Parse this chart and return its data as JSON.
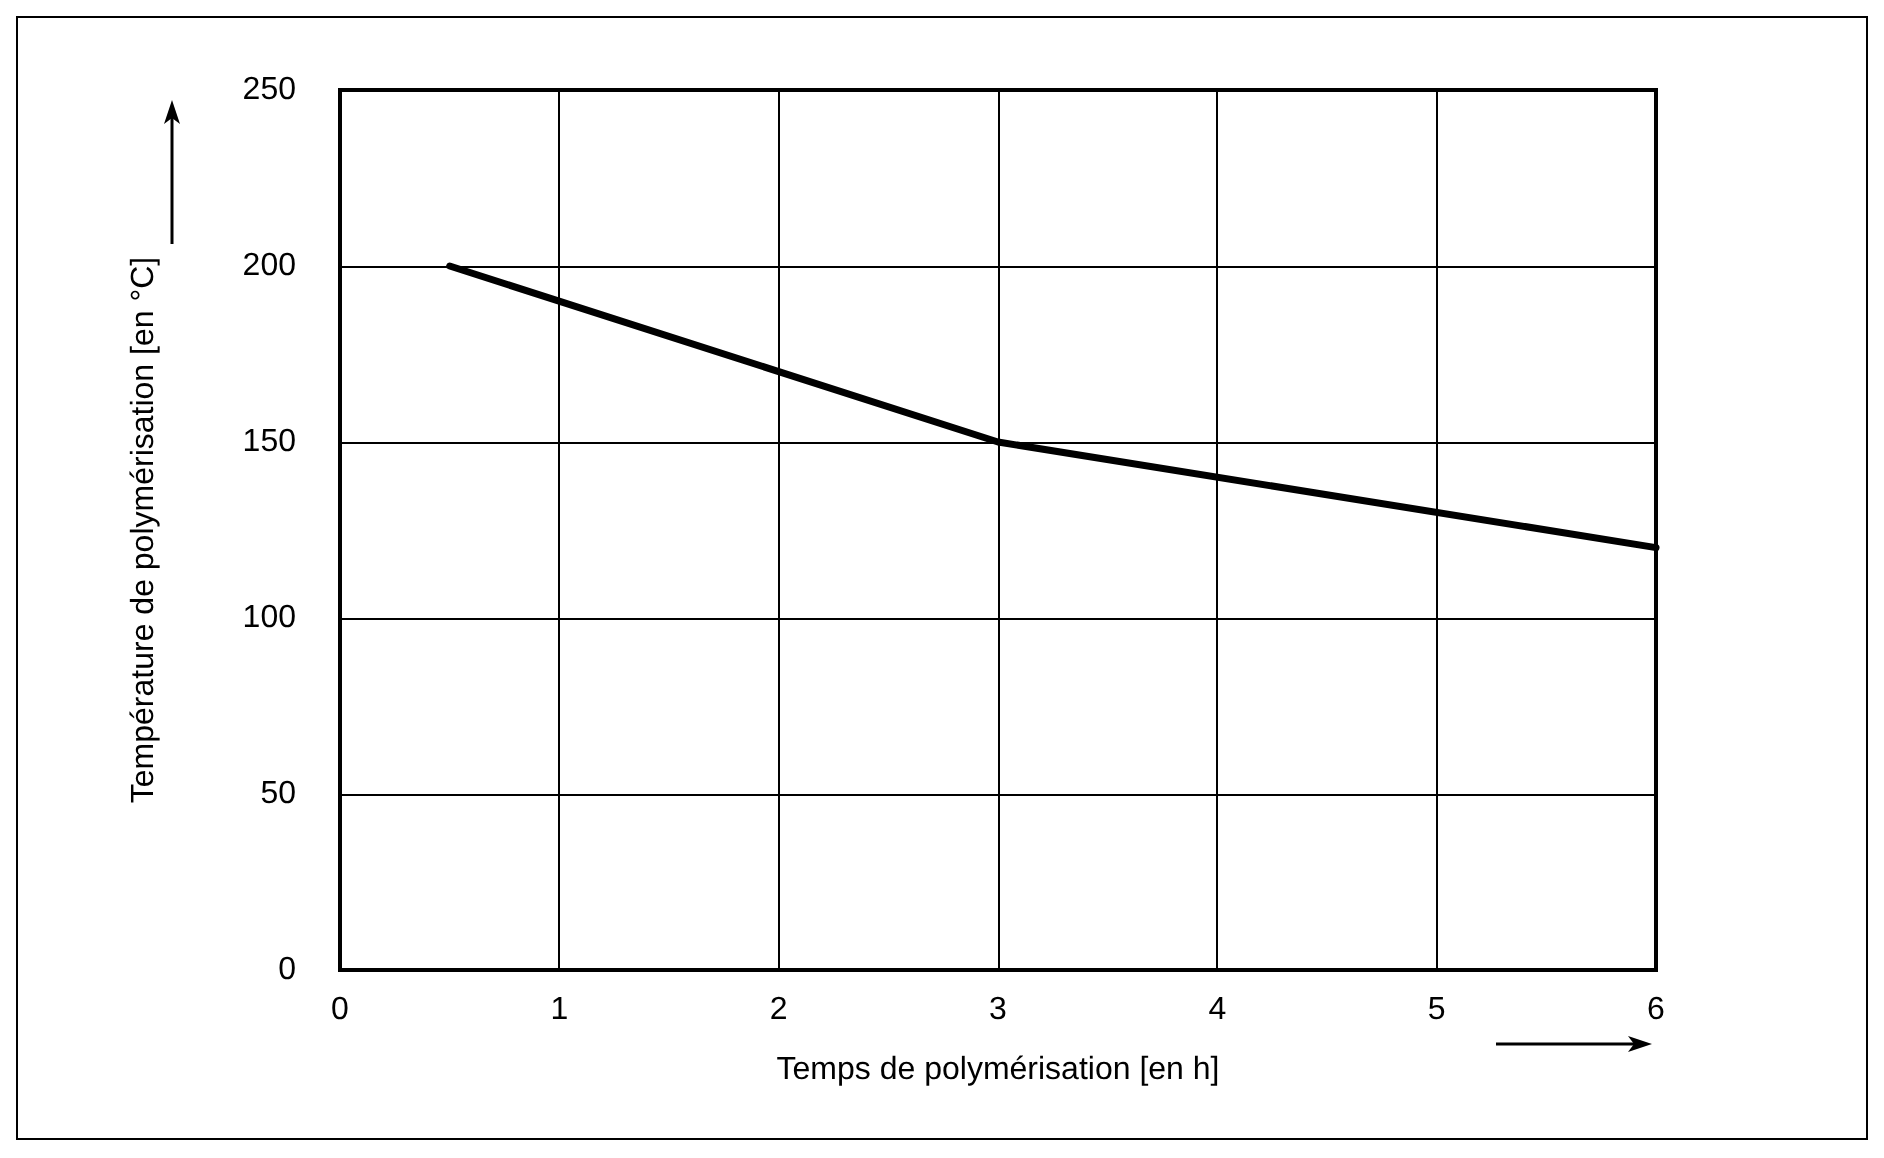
{
  "chart_data": {
    "type": "line",
    "xlabel": "Temps de polymérisation [en h]",
    "ylabel": "Température de polymérisation [en °C]",
    "x": [
      0.5,
      3,
      6
    ],
    "series": [
      {
        "color": "#000000",
        "values": [
          200,
          150,
          120
        ]
      }
    ],
    "xlim": [
      0,
      6
    ],
    "xticks": [
      0,
      1,
      2,
      3,
      4,
      5,
      6
    ],
    "ylim": [
      0,
      250
    ],
    "yticks": [
      0,
      50,
      100,
      150,
      200,
      250
    ],
    "grid": true,
    "marker": "none",
    "line_style": "solid"
  }
}
